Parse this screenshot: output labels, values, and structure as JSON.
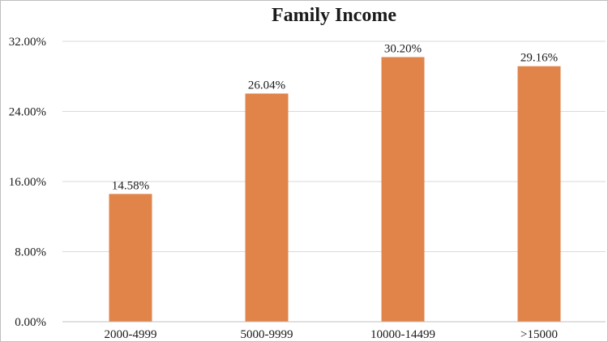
{
  "chart_data": {
    "type": "bar",
    "title": "Family Income",
    "categories": [
      "2000-4999",
      "5000-9999",
      "10000-14499",
      ">15000"
    ],
    "values": [
      14.58,
      26.04,
      30.2,
      29.16
    ],
    "data_labels": [
      "14.58%",
      "26.04%",
      "30.20%",
      "29.16%"
    ],
    "ylim": [
      0,
      32
    ],
    "yticks": [
      0,
      8,
      16,
      24,
      32
    ],
    "ytick_labels": [
      "0.00%",
      "8.00%",
      "16.00%",
      "24.00%",
      "32.00%"
    ],
    "xlabel": "",
    "ylabel": "",
    "grid": true,
    "legend": "none",
    "bar_color": "#E0844A"
  }
}
